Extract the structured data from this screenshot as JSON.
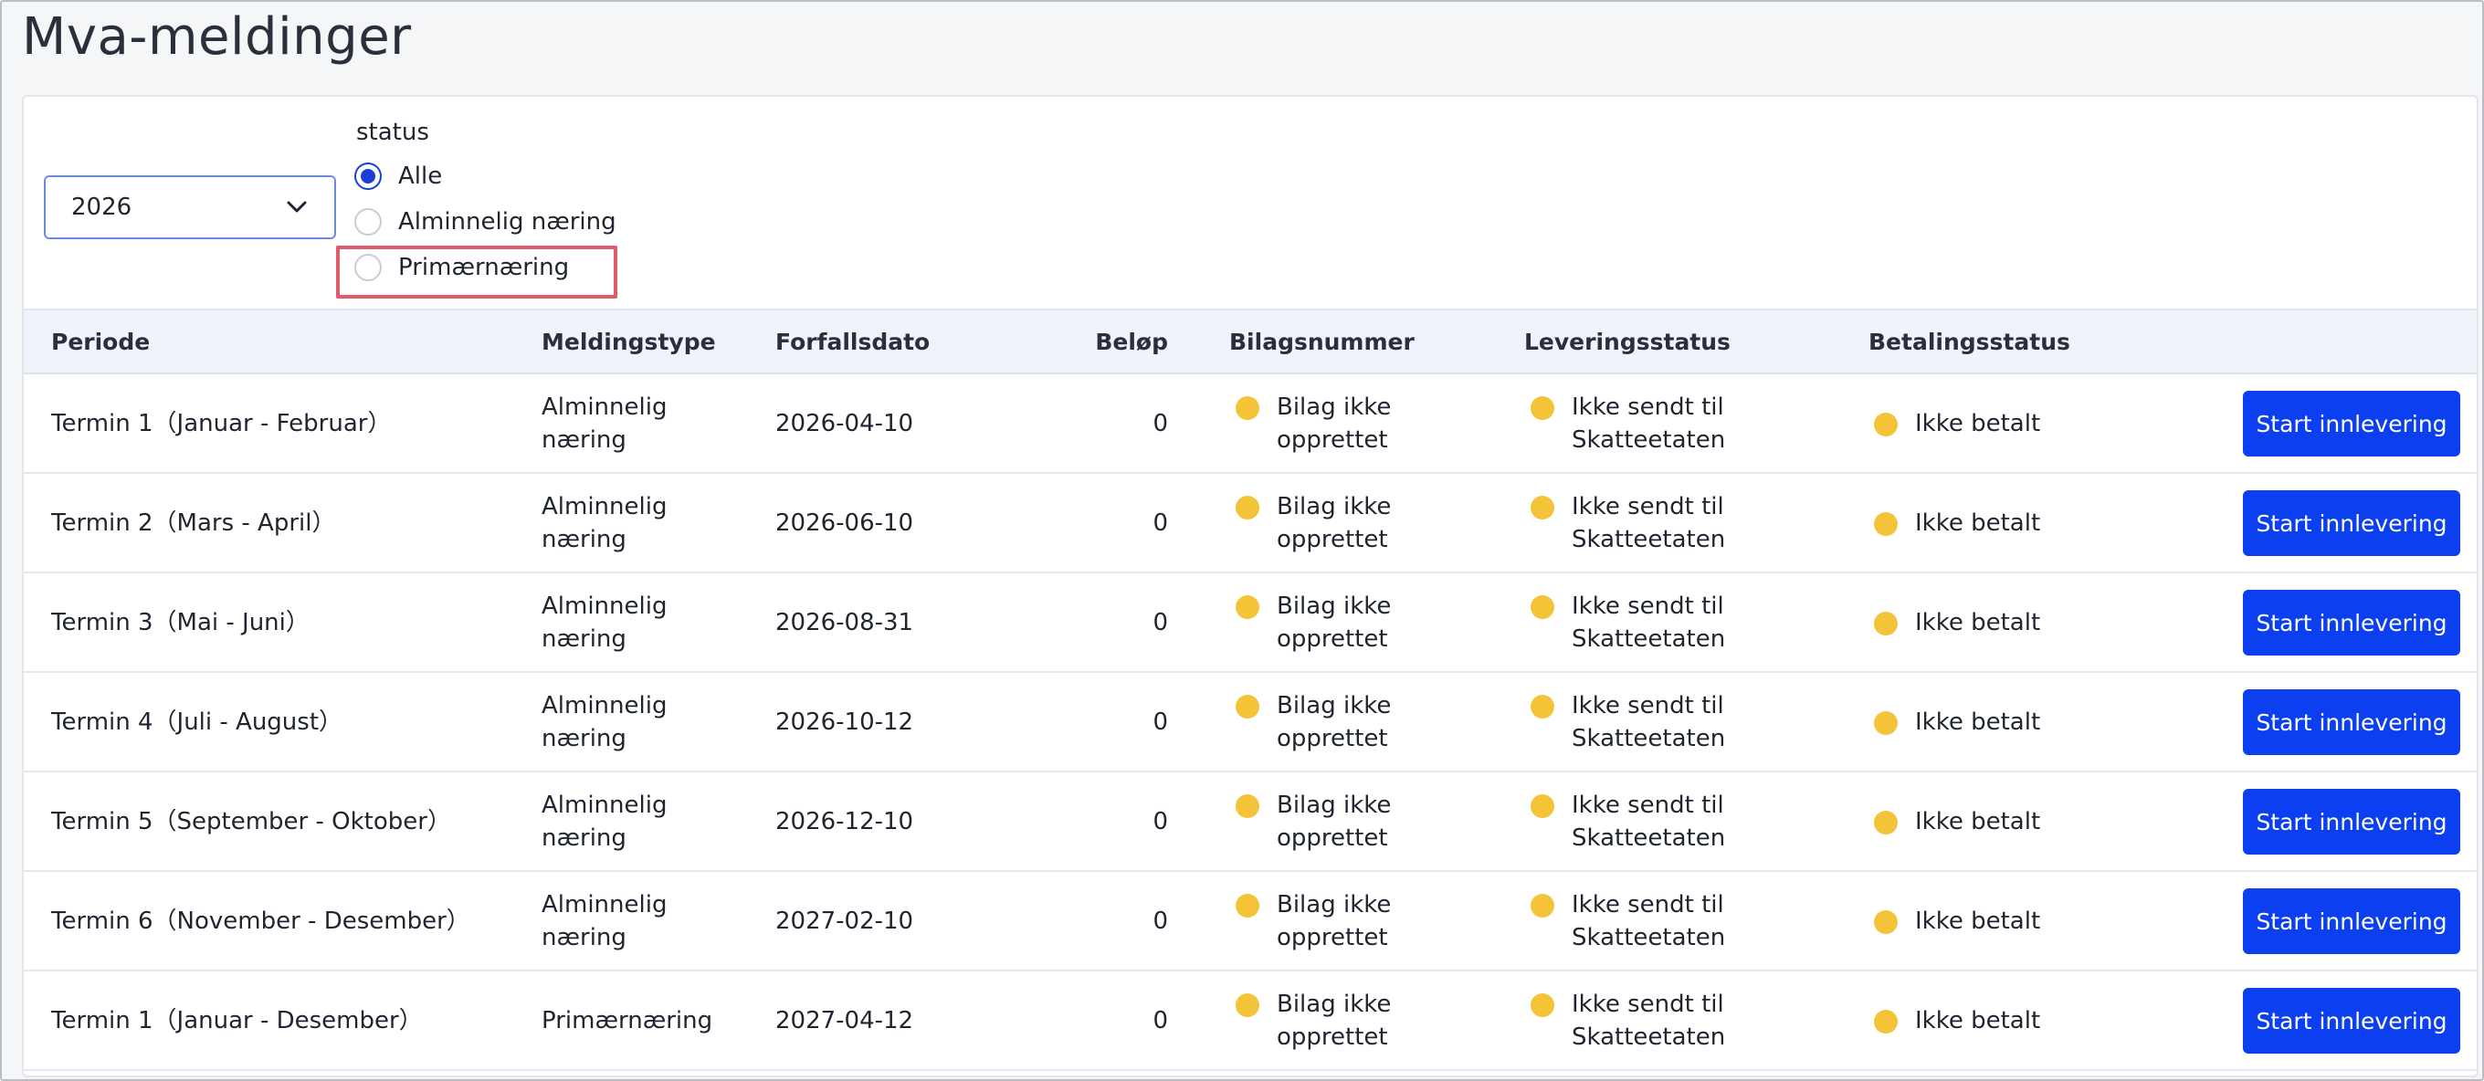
{
  "page": {
    "title": "Mva-meldinger"
  },
  "filters": {
    "year": {
      "selected": "2026"
    },
    "status_label": "status",
    "radio_options": [
      {
        "label": "Alle",
        "checked": true
      },
      {
        "label": "Alminnelig næring",
        "checked": false
      },
      {
        "label": "Primærnæring",
        "checked": false
      }
    ]
  },
  "table": {
    "headers": [
      "Periode",
      "Meldingstype",
      "Forfallsdato",
      "Beløp",
      "Bilagsnummer",
      "Leveringsstatus",
      "Betalingsstatus"
    ],
    "rows": [
      {
        "periode": "Termin 1（Januar - Februar）",
        "type1": "Alminnelig",
        "type2": "næring",
        "forfall": "2026-04-10",
        "belop": "0",
        "bilag1": "Bilag ikke",
        "bilag2": "opprettet",
        "lev1": "Ikke sendt til",
        "lev2": "Skatteetaten",
        "betaling": "Ikke betalt",
        "action": "Start innlevering"
      },
      {
        "periode": "Termin 2（Mars - April）",
        "type1": "Alminnelig",
        "type2": "næring",
        "forfall": "2026-06-10",
        "belop": "0",
        "bilag1": "Bilag ikke",
        "bilag2": "opprettet",
        "lev1": "Ikke sendt til",
        "lev2": "Skatteetaten",
        "betaling": "Ikke betalt",
        "action": "Start innlevering"
      },
      {
        "periode": "Termin 3（Mai - Juni）",
        "type1": "Alminnelig",
        "type2": "næring",
        "forfall": "2026-08-31",
        "belop": "0",
        "bilag1": "Bilag ikke",
        "bilag2": "opprettet",
        "lev1": "Ikke sendt til",
        "lev2": "Skatteetaten",
        "betaling": "Ikke betalt",
        "action": "Start innlevering"
      },
      {
        "periode": "Termin 4（Juli - August）",
        "type1": "Alminnelig",
        "type2": "næring",
        "forfall": "2026-10-12",
        "belop": "0",
        "bilag1": "Bilag ikke",
        "bilag2": "opprettet",
        "lev1": "Ikke sendt til",
        "lev2": "Skatteetaten",
        "betaling": "Ikke betalt",
        "action": "Start innlevering"
      },
      {
        "periode": "Termin 5（September - Oktober）",
        "type1": "Alminnelig",
        "type2": "næring",
        "forfall": "2026-12-10",
        "belop": "0",
        "bilag1": "Bilag ikke",
        "bilag2": "opprettet",
        "lev1": "Ikke sendt til",
        "lev2": "Skatteetaten",
        "betaling": "Ikke betalt",
        "action": "Start innlevering"
      },
      {
        "periode": "Termin 6（November - Desember）",
        "type1": "Alminnelig",
        "type2": "næring",
        "forfall": "2027-02-10",
        "belop": "0",
        "bilag1": "Bilag ikke",
        "bilag2": "opprettet",
        "lev1": "Ikke sendt til",
        "lev2": "Skatteetaten",
        "betaling": "Ikke betalt",
        "action": "Start innlevering"
      },
      {
        "periode": "Termin 1（Januar - Desember）",
        "type1": "Primærnæring",
        "type2": "",
        "forfall": "2027-04-12",
        "belop": "0",
        "bilag1": "Bilag ikke",
        "bilag2": "opprettet",
        "lev1": "Ikke sendt til",
        "lev2": "Skatteetaten",
        "betaling": "Ikke betalt",
        "action": "Start innlevering"
      }
    ]
  },
  "colors": {
    "accent": "#0b3ff0",
    "status_dot": "#f3c338",
    "highlight": "#e05b6b"
  }
}
